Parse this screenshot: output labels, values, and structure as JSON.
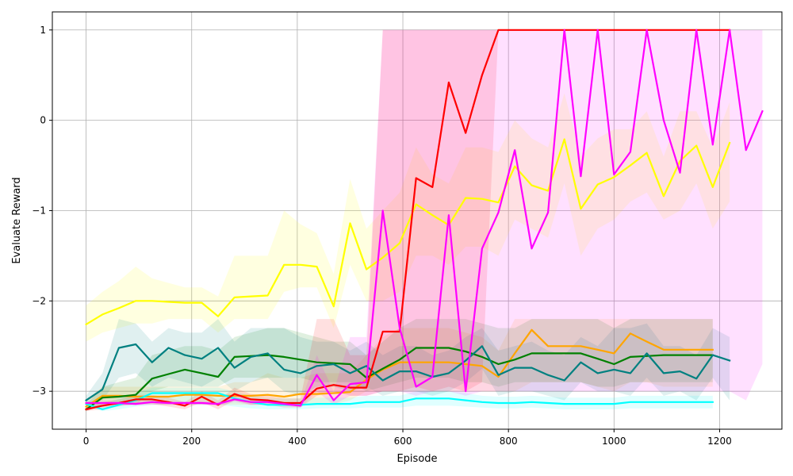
{
  "chart_data": {
    "type": "line",
    "title": "",
    "xlabel": "Episode",
    "ylabel": "Evaluate Reward",
    "xlim": [
      -64,
      1318
    ],
    "ylim": [
      -3.42,
      1.2
    ],
    "xticks": [
      0,
      200,
      400,
      600,
      800,
      1000,
      1200
    ],
    "yticks": [
      -3,
      -2,
      -1,
      0,
      1
    ],
    "grid": true,
    "series": [
      {
        "color": "#ffff00",
        "x": [
          0,
          31,
          62,
          94,
          125,
          156,
          187,
          219,
          250,
          281,
          312,
          344,
          375,
          406,
          437,
          469,
          500,
          531,
          562,
          594,
          625,
          656,
          687,
          719,
          750,
          781,
          812,
          844,
          875,
          906,
          937,
          969,
          1000,
          1031,
          1062,
          1094,
          1125,
          1156,
          1187,
          1219
        ],
        "y": [
          -2.26,
          -2.15,
          -2.08,
          -2.0,
          -2.0,
          -2.01,
          -2.02,
          -2.02,
          -2.17,
          -1.96,
          -1.95,
          -1.94,
          -1.6,
          -1.6,
          -1.62,
          -2.06,
          -1.14,
          -1.65,
          -1.52,
          -1.36,
          -0.93,
          -1.05,
          -1.16,
          -0.86,
          -0.87,
          -0.91,
          -0.51,
          -0.72,
          -0.78,
          -0.21,
          -0.98,
          -0.71,
          -0.63,
          -0.5,
          -0.36,
          -0.84,
          -0.45,
          -0.28,
          -0.74,
          -0.25
        ],
        "band_lower": [
          -2.45,
          -2.35,
          -2.3,
          -2.25,
          -2.25,
          -2.2,
          -2.2,
          -2.2,
          -2.35,
          -2.2,
          -2.2,
          -2.2,
          -1.9,
          -1.85,
          -1.85,
          -2.3,
          -1.6,
          -2.0,
          -2.0,
          -1.9,
          -1.5,
          -1.5,
          -1.6,
          -1.4,
          -1.4,
          -1.5,
          -1.1,
          -1.2,
          -1.3,
          -0.7,
          -1.5,
          -1.2,
          -1.1,
          -0.9,
          -0.8,
          -1.1,
          -1.0,
          -0.7,
          -1.2,
          -0.9
        ],
        "band_upper": [
          -2.05,
          -1.9,
          -1.78,
          -1.62,
          -1.75,
          -1.8,
          -1.85,
          -1.85,
          -1.95,
          -1.5,
          -1.5,
          -1.5,
          -1.0,
          -1.15,
          -1.25,
          -1.7,
          -0.65,
          -1.2,
          -1.0,
          -0.8,
          -0.3,
          -0.6,
          -0.7,
          -0.3,
          -0.3,
          -0.35,
          0.0,
          -0.2,
          -0.3,
          0.3,
          -0.4,
          -0.2,
          -0.1,
          -0.1,
          0.1,
          -0.4,
          0.1,
          0.1,
          -0.3,
          0.2
        ]
      },
      {
        "color": "#ffa500",
        "x": [
          0,
          31,
          62,
          94,
          125,
          156,
          187,
          219,
          250,
          281,
          312,
          344,
          375,
          406,
          437,
          469,
          500,
          531,
          562,
          594,
          625,
          656,
          687,
          719,
          750,
          781,
          812,
          844,
          875,
          906,
          937,
          969,
          1000,
          1031,
          1062,
          1094,
          1125,
          1156,
          1187
        ],
        "y": [
          -3.17,
          -3.05,
          -3.05,
          -3.06,
          -3.06,
          -3.06,
          -3.04,
          -3.04,
          -3.05,
          -3.05,
          -3.05,
          -3.04,
          -3.06,
          -3.03,
          -3.03,
          -3.02,
          -3.01,
          -2.87,
          -2.76,
          -2.68,
          -2.68,
          -2.68,
          -2.68,
          -2.7,
          -2.72,
          -2.84,
          -2.58,
          -2.32,
          -2.5,
          -2.5,
          -2.5,
          -2.54,
          -2.58,
          -2.36,
          -2.45,
          -2.54,
          -2.54,
          -2.54,
          -2.54
        ],
        "band_lower": [
          -3.2,
          -3.15,
          -3.15,
          -3.15,
          -3.15,
          -3.15,
          -3.15,
          -3.15,
          -3.15,
          -3.15,
          -3.15,
          -3.15,
          -3.15,
          -3.15,
          -3.15,
          -3.15,
          -3.1,
          -3.0,
          -3.0,
          -3.0,
          -3.0,
          -3.0,
          -3.0,
          -3.0,
          -3.0,
          -3.0,
          -3.0,
          -2.9,
          -2.9,
          -2.9,
          -2.9,
          -2.95,
          -3.0,
          -2.9,
          -2.9,
          -2.95,
          -2.95,
          -2.95,
          -2.95
        ],
        "band_upper": [
          -3.1,
          -2.95,
          -2.95,
          -2.95,
          -2.95,
          -2.95,
          -2.95,
          -2.95,
          -2.95,
          -2.9,
          -2.9,
          -2.8,
          -2.85,
          -2.85,
          -2.8,
          -2.8,
          -2.8,
          -2.6,
          -2.4,
          -2.3,
          -2.3,
          -2.3,
          -2.3,
          -2.35,
          -2.4,
          -2.55,
          -2.2,
          -2.2,
          -2.2,
          -2.2,
          -2.2,
          -2.2,
          -2.2,
          -2.2,
          -2.2,
          -2.2,
          -2.2,
          -2.2,
          -2.2
        ]
      },
      {
        "color": "#008000",
        "x": [
          0,
          31,
          62,
          94,
          125,
          156,
          187,
          219,
          250,
          281,
          312,
          344,
          375,
          406,
          437,
          469,
          500,
          531,
          562,
          594,
          625,
          656,
          687,
          719,
          750,
          781,
          812,
          844,
          875,
          906,
          937,
          969,
          1000,
          1031,
          1062,
          1094,
          1125,
          1156,
          1187
        ],
        "y": [
          -3.2,
          -3.07,
          -3.06,
          -3.04,
          -2.86,
          -2.81,
          -2.76,
          -2.8,
          -2.84,
          -2.62,
          -2.61,
          -2.6,
          -2.62,
          -2.65,
          -2.68,
          -2.69,
          -2.7,
          -2.85,
          -2.75,
          -2.65,
          -2.52,
          -2.52,
          -2.52,
          -2.56,
          -2.62,
          -2.7,
          -2.65,
          -2.58,
          -2.58,
          -2.58,
          -2.58,
          -2.64,
          -2.7,
          -2.62,
          -2.61,
          -2.6,
          -2.6,
          -2.6,
          -2.6
        ],
        "band_lower": [
          -3.22,
          -3.15,
          -3.15,
          -3.15,
          -3.0,
          -2.95,
          -2.95,
          -2.95,
          -2.95,
          -2.85,
          -2.85,
          -2.85,
          -2.85,
          -2.85,
          -2.9,
          -2.9,
          -2.9,
          -3.0,
          -2.95,
          -2.9,
          -2.85,
          -2.85,
          -2.85,
          -2.9,
          -2.9,
          -2.95,
          -2.9,
          -2.9,
          -2.9,
          -2.9,
          -2.9,
          -2.95,
          -2.95,
          -2.9,
          -2.9,
          -2.9,
          -2.9,
          -2.9,
          -2.9
        ],
        "band_upper": [
          -3.15,
          -2.95,
          -2.9,
          -2.85,
          -2.6,
          -2.55,
          -2.5,
          -2.5,
          -2.55,
          -2.4,
          -2.35,
          -2.3,
          -2.3,
          -2.35,
          -2.4,
          -2.45,
          -2.45,
          -2.6,
          -2.45,
          -2.3,
          -2.2,
          -2.2,
          -2.2,
          -2.2,
          -2.25,
          -2.3,
          -2.3,
          -2.2,
          -2.2,
          -2.2,
          -2.2,
          -2.2,
          -2.3,
          -2.2,
          -2.2,
          -2.2,
          -2.2,
          -2.2,
          -2.2
        ]
      },
      {
        "color": "#008080",
        "x": [
          0,
          31,
          62,
          94,
          125,
          156,
          187,
          219,
          250,
          281,
          312,
          344,
          375,
          406,
          437,
          469,
          500,
          531,
          562,
          594,
          625,
          656,
          687,
          719,
          750,
          781,
          812,
          844,
          875,
          906,
          937,
          969,
          1000,
          1031,
          1062,
          1094,
          1125,
          1156,
          1187,
          1219
        ],
        "y": [
          -3.1,
          -2.98,
          -2.52,
          -2.48,
          -2.68,
          -2.52,
          -2.6,
          -2.64,
          -2.52,
          -2.74,
          -2.62,
          -2.58,
          -2.76,
          -2.8,
          -2.72,
          -2.7,
          -2.8,
          -2.72,
          -2.88,
          -2.78,
          -2.78,
          -2.84,
          -2.8,
          -2.66,
          -2.5,
          -2.82,
          -2.74,
          -2.74,
          -2.82,
          -2.88,
          -2.68,
          -2.8,
          -2.76,
          -2.8,
          -2.58,
          -2.8,
          -2.78,
          -2.86,
          -2.6,
          -2.66
        ],
        "band_lower": [
          -3.15,
          -3.1,
          -2.85,
          -2.8,
          -2.95,
          -2.85,
          -2.9,
          -2.95,
          -2.85,
          -3.0,
          -2.9,
          -2.85,
          -3.0,
          -3.05,
          -2.95,
          -2.95,
          -3.0,
          -2.95,
          -3.05,
          -3.0,
          -3.0,
          -3.05,
          -3.0,
          -2.9,
          -2.75,
          -3.05,
          -3.0,
          -3.0,
          -3.05,
          -3.1,
          -2.9,
          -3.0,
          -3.0,
          -3.05,
          -2.85,
          -3.05,
          -3.0,
          -3.1,
          -2.85,
          -3.1
        ],
        "band_upper": [
          -3.05,
          -2.8,
          -2.2,
          -2.25,
          -2.45,
          -2.3,
          -2.35,
          -2.35,
          -2.2,
          -2.45,
          -2.3,
          -2.3,
          -2.3,
          -2.4,
          -2.45,
          -2.45,
          -2.55,
          -2.45,
          -2.6,
          -2.5,
          -2.5,
          -2.6,
          -2.55,
          -2.4,
          -2.3,
          -2.55,
          -2.5,
          -2.45,
          -2.55,
          -2.6,
          -2.4,
          -2.5,
          -2.3,
          -2.3,
          -2.25,
          -2.5,
          -2.5,
          -2.6,
          -2.3,
          -2.4
        ]
      },
      {
        "color": "#00ffff",
        "x": [
          0,
          31,
          62,
          94,
          125,
          156,
          187,
          219,
          250,
          281,
          312,
          344,
          375,
          406,
          437,
          469,
          500,
          531,
          562,
          594,
          625,
          656,
          687,
          719,
          750,
          781,
          812,
          844,
          875,
          906,
          937,
          969,
          1000,
          1031,
          1062,
          1094,
          1125,
          1156,
          1187
        ],
        "y": [
          -3.14,
          -3.2,
          -3.15,
          -3.1,
          -3.02,
          -3.02,
          -3.02,
          -3.02,
          -3.02,
          -3.08,
          -3.12,
          -3.15,
          -3.15,
          -3.15,
          -3.14,
          -3.14,
          -3.14,
          -3.12,
          -3.12,
          -3.12,
          -3.08,
          -3.08,
          -3.08,
          -3.1,
          -3.12,
          -3.13,
          -3.13,
          -3.12,
          -3.13,
          -3.14,
          -3.14,
          -3.14,
          -3.14,
          -3.12,
          -3.12,
          -3.12,
          -3.12,
          -3.12,
          -3.12
        ],
        "band_lower": [
          -3.17,
          -3.22,
          -3.2,
          -3.17,
          -3.15,
          -3.15,
          -3.15,
          -3.15,
          -3.15,
          -3.17,
          -3.19,
          -3.2,
          -3.2,
          -3.2,
          -3.19,
          -3.19,
          -3.19,
          -3.18,
          -3.18,
          -3.18,
          -3.16,
          -3.16,
          -3.16,
          -3.17,
          -3.18,
          -3.19,
          -3.19,
          -3.18,
          -3.19,
          -3.2,
          -3.2,
          -3.2,
          -3.2,
          -3.19,
          -3.19,
          -3.19,
          -3.19,
          -3.19,
          -3.19
        ],
        "band_upper": [
          -3.1,
          -3.15,
          -3.08,
          -3.02,
          -2.96,
          -2.96,
          -2.96,
          -2.96,
          -2.96,
          -3.0,
          -3.05,
          -3.08,
          -3.08,
          -3.08,
          -3.07,
          -3.07,
          -3.07,
          -3.05,
          -3.05,
          -3.05,
          -3.0,
          -3.0,
          -3.0,
          -3.02,
          -3.05,
          -3.06,
          -3.06,
          -3.05,
          -3.06,
          -3.07,
          -3.07,
          -3.07,
          -3.07,
          -3.05,
          -3.05,
          -3.05,
          -3.05,
          -3.05,
          -3.05
        ]
      },
      {
        "color": "#ff0000",
        "x": [
          0,
          31,
          62,
          94,
          125,
          156,
          187,
          219,
          250,
          281,
          312,
          344,
          375,
          406,
          437,
          469,
          500,
          531,
          562,
          594,
          625,
          656,
          687,
          719,
          750,
          781,
          812,
          844,
          875,
          906,
          937,
          969,
          1000,
          1031,
          1062,
          1094,
          1125,
          1156,
          1187,
          1219
        ],
        "y": [
          -3.2,
          -3.16,
          -3.13,
          -3.09,
          -3.09,
          -3.12,
          -3.16,
          -3.06,
          -3.15,
          -3.03,
          -3.09,
          -3.1,
          -3.13,
          -3.13,
          -2.97,
          -2.93,
          -2.96,
          -2.96,
          -2.34,
          -2.34,
          -0.64,
          -0.74,
          0.42,
          -0.14,
          0.5,
          1.0,
          1.0,
          1.0,
          1.0,
          1.0,
          1.0,
          1.0,
          1.0,
          1.0,
          1.0,
          1.0,
          1.0,
          1.0,
          1.0,
          1.0
        ],
        "band_lower": [
          -3.22,
          -3.2,
          -3.17,
          -3.14,
          -3.14,
          -3.17,
          -3.2,
          -3.12,
          -3.2,
          -3.1,
          -3.15,
          -3.15,
          -3.18,
          -3.18,
          -3.05,
          -3.0,
          -3.05,
          -3.05,
          -3.0,
          -3.0,
          -2.95,
          -3.0,
          -2.95,
          -3.0,
          -2.9,
          1.0,
          1.0,
          1.0,
          1.0,
          1.0,
          1.0,
          1.0,
          1.0,
          1.0,
          1.0,
          1.0,
          1.0,
          1.0,
          1.0,
          1.0
        ],
        "band_upper": [
          -3.18,
          -3.12,
          -3.09,
          -3.04,
          -3.04,
          -3.07,
          -3.12,
          -3.0,
          -3.1,
          -2.96,
          -3.03,
          -3.05,
          -3.08,
          -3.08,
          -2.2,
          -2.2,
          -2.6,
          -2.6,
          1.0,
          1.0,
          1.0,
          1.0,
          1.0,
          1.0,
          1.0,
          1.0,
          1.0,
          1.0,
          1.0,
          1.0,
          1.0,
          1.0,
          1.0,
          1.0,
          1.0,
          1.0,
          1.0,
          1.0,
          1.0,
          1.0
        ]
      },
      {
        "color": "#ff00ff",
        "x": [
          0,
          31,
          62,
          94,
          125,
          156,
          187,
          219,
          250,
          281,
          312,
          344,
          375,
          406,
          437,
          469,
          500,
          531,
          562,
          594,
          625,
          656,
          687,
          719,
          750,
          781,
          812,
          844,
          875,
          906,
          937,
          969,
          1000,
          1031,
          1062,
          1094,
          1125,
          1156,
          1187,
          1219,
          1250,
          1281
        ],
        "y": [
          -3.13,
          -3.13,
          -3.13,
          -3.14,
          -3.12,
          -3.13,
          -3.13,
          -3.13,
          -3.14,
          -3.09,
          -3.12,
          -3.12,
          -3.14,
          -3.16,
          -2.82,
          -3.1,
          -2.92,
          -2.9,
          -1.0,
          -2.3,
          -2.95,
          -2.84,
          -1.05,
          -3.0,
          -1.42,
          -1.02,
          -0.33,
          -1.42,
          -1.02,
          1.0,
          -0.62,
          1.0,
          -0.6,
          -0.35,
          1.0,
          0.0,
          -0.58,
          1.0,
          -0.27,
          1.0,
          -0.33,
          0.1
        ],
        "band_lower": [
          -3.15,
          -3.15,
          -3.15,
          -3.16,
          -3.15,
          -3.15,
          -3.15,
          -3.15,
          -3.16,
          -3.12,
          -3.15,
          -3.15,
          -3.16,
          -3.18,
          -3.0,
          -3.15,
          -3.05,
          -3.05,
          -3.0,
          -3.0,
          -3.05,
          -3.0,
          -3.0,
          -3.05,
          -3.0,
          -3.0,
          -3.0,
          -3.0,
          -3.0,
          -3.0,
          -3.0,
          -3.0,
          -3.0,
          -3.0,
          -3.0,
          -3.0,
          -3.0,
          -3.0,
          -3.0,
          -3.0,
          -3.1,
          -2.7
        ],
        "band_upper": [
          -3.11,
          -3.11,
          -3.11,
          -3.12,
          -3.1,
          -3.11,
          -3.11,
          -3.11,
          -3.12,
          -3.06,
          -3.09,
          -3.09,
          -3.12,
          -3.14,
          -2.6,
          -3.0,
          -2.4,
          -2.4,
          1.0,
          1.0,
          1.0,
          1.0,
          1.0,
          1.0,
          1.0,
          1.0,
          1.0,
          1.0,
          1.0,
          1.0,
          1.0,
          1.0,
          1.0,
          1.0,
          1.0,
          1.0,
          1.0,
          1.0,
          1.0,
          1.0,
          1.0,
          1.0
        ]
      }
    ]
  }
}
